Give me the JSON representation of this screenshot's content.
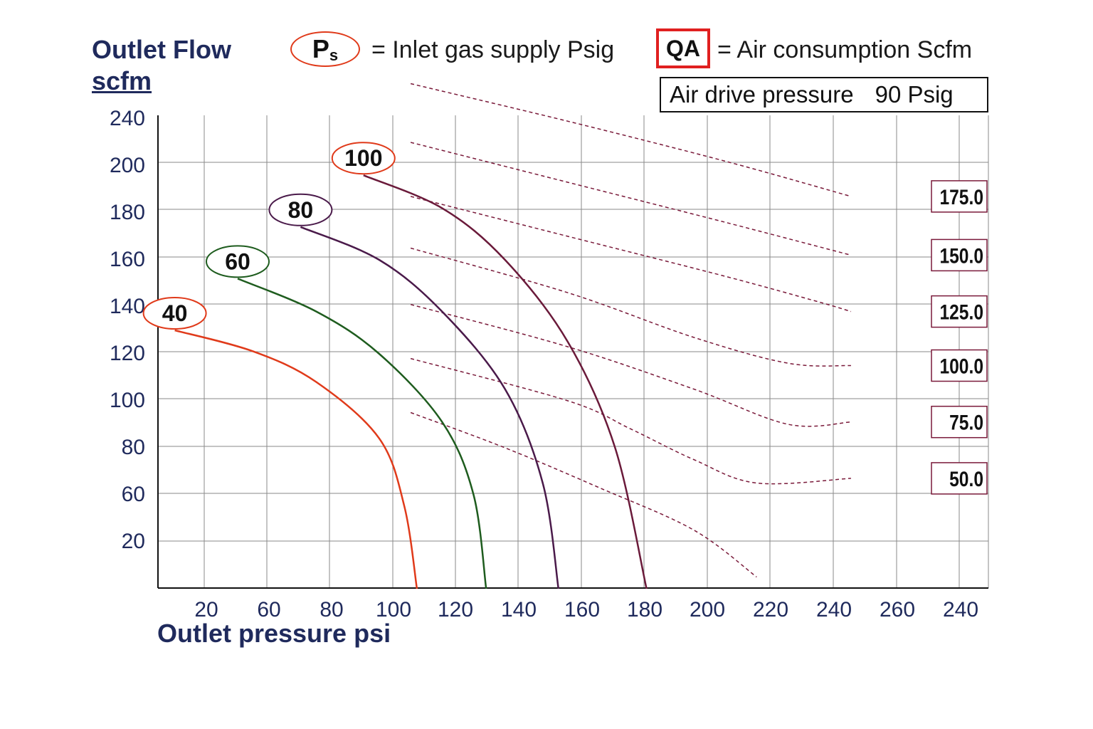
{
  "header": {
    "y_title": "Outlet Flow",
    "y_unit": "scfm",
    "legend_ps_symbol": "P",
    "legend_ps_sub": "s",
    "legend_ps_text": "= Inlet gas supply  Psig",
    "legend_qa_symbol": "QA",
    "legend_qa_text": "= Air consumption  Scfm",
    "note_label": "Air drive pressure",
    "note_value": "90 Psig"
  },
  "footer": {
    "x_title": "Outlet pressure  psi"
  },
  "colors": {
    "ps40": "#e03a1a",
    "ps60": "#1e5c1e",
    "ps80": "#4a1a4a",
    "ps100": "#6a1a3a",
    "qa_dashed": "#7a1a3a",
    "grid": "#8a8a8a",
    "tick_text": "#1f2a5c"
  },
  "chart_data": {
    "type": "line",
    "title": "",
    "xlabel": "Outlet pressure  psi",
    "ylabel": "Outlet Flow scfm",
    "x_tick_labels": [
      "20",
      "60",
      "80",
      "100",
      "120",
      "140",
      "160",
      "180",
      "200",
      "220",
      "240",
      "260",
      "240"
    ],
    "y_tick_labels": [
      "20",
      "60",
      "80",
      "100",
      "120",
      "140",
      "160",
      "180",
      "200",
      "240"
    ],
    "grid": true,
    "series": [
      {
        "name": "40",
        "color": "#e03a1a",
        "points": [
          [
            55,
            110
          ],
          [
            80,
            101
          ],
          [
            100,
            88
          ],
          [
            120,
            64
          ],
          [
            128,
            35
          ],
          [
            132,
            0
          ]
        ]
      },
      {
        "name": "60",
        "color": "#1e5c1e",
        "points": [
          [
            75,
            132
          ],
          [
            100,
            118
          ],
          [
            120,
            100
          ],
          [
            140,
            71
          ],
          [
            150,
            40
          ],
          [
            154,
            0
          ]
        ]
      },
      {
        "name": "80",
        "color": "#4a1a4a",
        "points": [
          [
            95,
            154
          ],
          [
            120,
            140
          ],
          [
            140,
            118
          ],
          [
            160,
            85
          ],
          [
            172,
            45
          ],
          [
            177,
            0
          ]
        ]
      },
      {
        "name": "100",
        "color": "#6a1a3a",
        "points": [
          [
            115,
            176
          ],
          [
            140,
            162
          ],
          [
            160,
            140
          ],
          [
            180,
            105
          ],
          [
            195,
            60
          ],
          [
            205,
            0
          ]
        ]
      }
    ],
    "air_consumption_lines": [
      {
        "label": "175.0",
        "points": [
          [
            130,
            215
          ],
          [
            180,
            199
          ],
          [
            230,
            182
          ],
          [
            270,
            167
          ]
        ]
      },
      {
        "label": "150.0",
        "points": [
          [
            130,
            190
          ],
          [
            180,
            173
          ],
          [
            230,
            156
          ],
          [
            270,
            142
          ]
        ]
      },
      {
        "label": "125.0",
        "points": [
          [
            130,
            167
          ],
          [
            180,
            150
          ],
          [
            230,
            133
          ],
          [
            260,
            122
          ],
          [
            270,
            118
          ]
        ]
      },
      {
        "label": "100.0",
        "points": [
          [
            130,
            145
          ],
          [
            180,
            126
          ],
          [
            220,
            107
          ],
          [
            250,
            96
          ],
          [
            270,
            95
          ]
        ]
      },
      {
        "label": "75.0",
        "points": [
          [
            130,
            121
          ],
          [
            180,
            103
          ],
          [
            220,
            85
          ],
          [
            250,
            70
          ],
          [
            270,
            71
          ]
        ]
      },
      {
        "label": "50.0",
        "points": [
          [
            130,
            98
          ],
          [
            180,
            80
          ],
          [
            200,
            68
          ],
          [
            220,
            55
          ],
          [
            240,
            45
          ],
          [
            270,
            47
          ]
        ]
      },
      {
        "label": "",
        "points": [
          [
            130,
            75
          ],
          [
            160,
            60
          ],
          [
            190,
            43
          ],
          [
            220,
            25
          ],
          [
            240,
            5
          ]
        ]
      }
    ]
  }
}
